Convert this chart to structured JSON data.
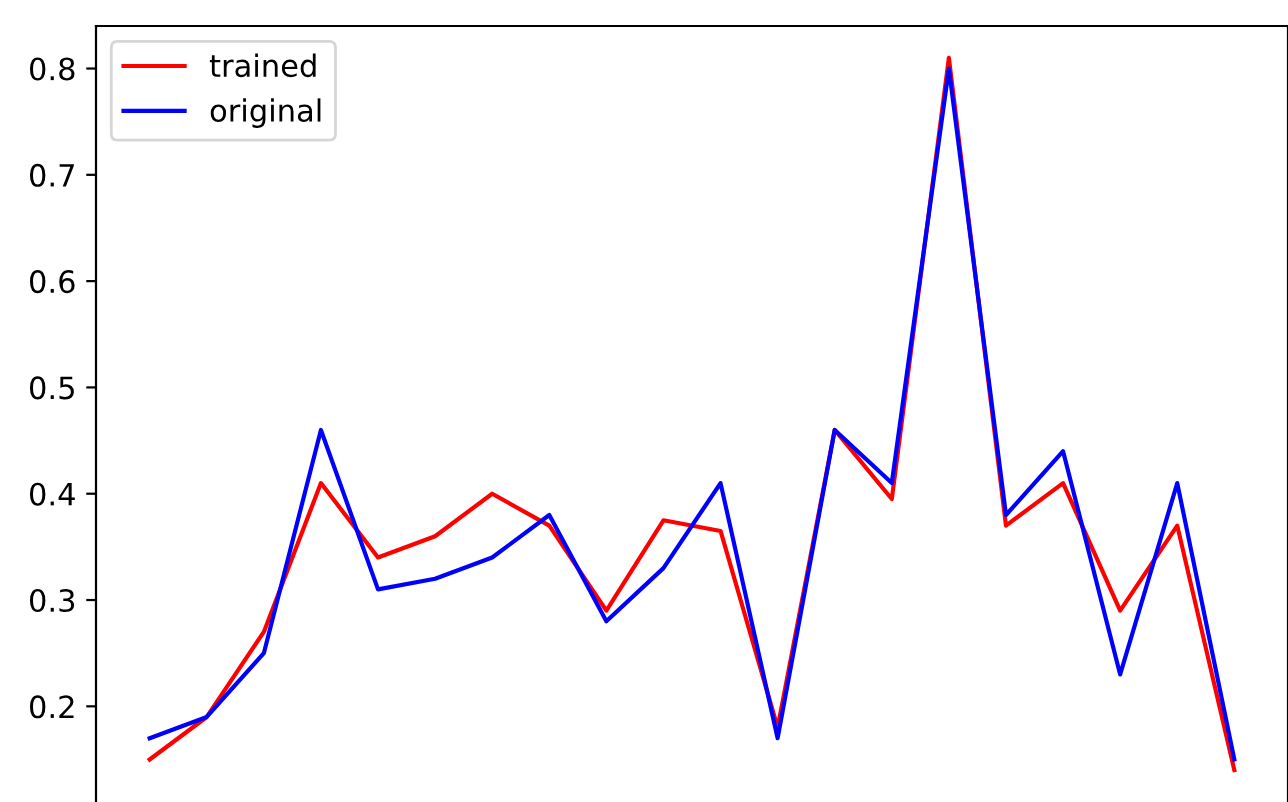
{
  "chart_data": {
    "type": "line",
    "categories": [
      null,
      null,
      null,
      null,
      null,
      null,
      null,
      null,
      null,
      null,
      null,
      null,
      null,
      null,
      null,
      null,
      null,
      null,
      null,
      null
    ],
    "series": [
      {
        "name": "trained",
        "color": "#ff0000",
        "values": [
          0.15,
          0.19,
          0.27,
          0.41,
          0.34,
          0.36,
          0.4,
          0.37,
          0.29,
          0.375,
          0.365,
          0.18,
          0.46,
          0.395,
          0.81,
          0.37,
          0.41,
          0.29,
          0.37,
          0.14
        ]
      },
      {
        "name": "original",
        "color": "#0000ff",
        "values": [
          0.17,
          0.19,
          0.25,
          0.46,
          0.31,
          0.32,
          0.34,
          0.38,
          0.28,
          0.33,
          0.41,
          0.17,
          0.46,
          0.41,
          0.8,
          0.38,
          0.44,
          0.23,
          0.41,
          0.15
        ]
      }
    ],
    "ylim": [
      0.11,
      0.84
    ],
    "yticks": [
      0.2,
      0.3,
      0.4,
      0.5,
      0.6,
      0.7,
      0.8
    ],
    "tick_labels": "y",
    "legend": "top left",
    "grid": false
  }
}
